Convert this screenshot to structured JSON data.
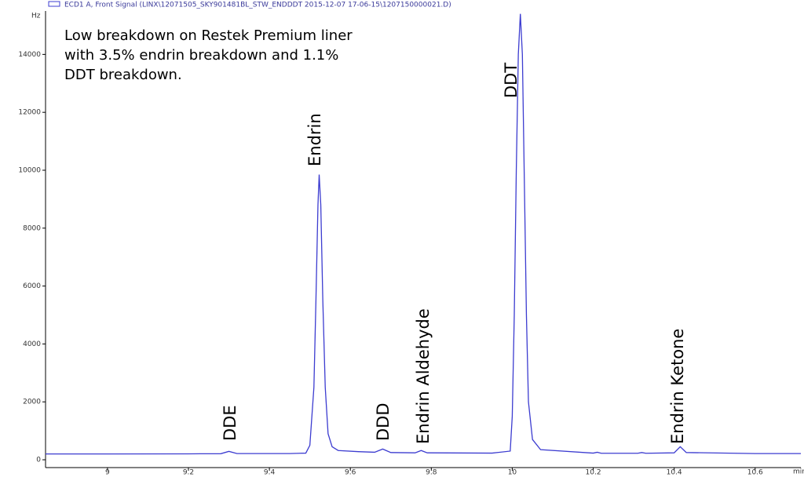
{
  "chart_data": {
    "type": "line",
    "legend_text": "ECD1 A, Front Signal (LINX\\12071505_SKY901481BL_STW_ENDDDT 2015-12-07 17-06-15\\1207150000021.D)",
    "y_unit": "Hz",
    "x_unit": "min",
    "annotation": [
      "Low breakdown on Restek Premium liner",
      "with 3.5% endrin breakdown and 1.1%",
      "DDT breakdown."
    ],
    "peak_labels": [
      "DDE",
      "Endrin",
      "DDD",
      "Endrin Aldehyde",
      "DDT",
      "Endrin Ketone"
    ],
    "x": [
      8.847,
      9.0,
      9.2,
      9.28,
      9.3,
      9.32,
      9.45,
      9.49,
      9.5,
      9.51,
      9.515,
      9.52,
      9.523,
      9.527,
      9.532,
      9.538,
      9.545,
      9.555,
      9.57,
      9.62,
      9.66,
      9.68,
      9.7,
      9.76,
      9.775,
      9.79,
      9.95,
      9.995,
      10.0,
      10.005,
      10.01,
      10.015,
      10.02,
      10.025,
      10.03,
      10.035,
      10.04,
      10.05,
      10.07,
      10.2,
      10.21,
      10.22,
      10.31,
      10.32,
      10.33,
      10.4,
      10.415,
      10.43,
      10.6,
      10.713
    ],
    "series": [
      {
        "name": "ECD1 A, Front Signal",
        "color": "#3c3cd0",
        "values": [
          200,
          200,
          205,
          210,
          290,
          215,
          215,
          230,
          500,
          2500,
          5500,
          8800,
          9850,
          8800,
          5500,
          2500,
          900,
          450,
          320,
          280,
          260,
          370,
          250,
          240,
          320,
          240,
          230,
          300,
          1500,
          5000,
          10000,
          14000,
          15400,
          14000,
          9500,
          5000,
          2000,
          700,
          350,
          230,
          260,
          225,
          225,
          250,
          225,
          240,
          450,
          250,
          215,
          215
        ]
      }
    ],
    "xlim": [
      8.847,
      10.713
    ],
    "ylim": [
      -270,
      15500
    ],
    "xticks": [
      9,
      9.2,
      9.4,
      9.6,
      9.8,
      10,
      10.2,
      10.4,
      10.6
    ],
    "yticks": [
      0,
      2000,
      4000,
      6000,
      8000,
      10000,
      12000,
      14000
    ]
  }
}
